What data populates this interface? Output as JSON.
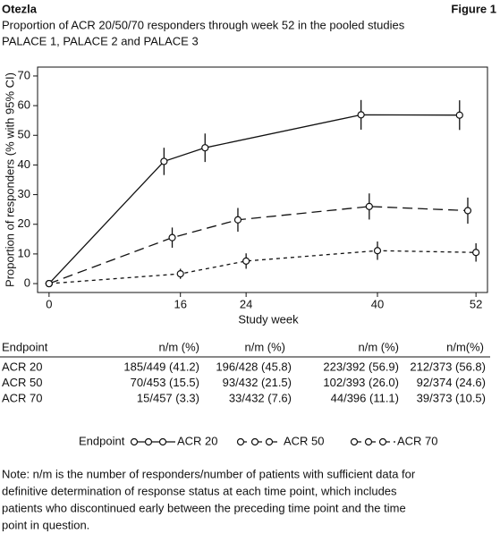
{
  "header": {
    "left": "Otezla",
    "right": "Figure 1"
  },
  "chart_data": {
    "type": "line",
    "title": [
      "Proportion of ACR 20/50/70 responders through week 52 in the pooled studies",
      "PALACE 1, PALACE 2 and PALACE 3"
    ],
    "x_label": "Study week",
    "y_label": "Proportion of responders (% with 95% CI)",
    "xlim": [
      -1.4,
      53.4
    ],
    "xticks": [
      0,
      16,
      24,
      40,
      52
    ],
    "ylim": [
      -3,
      73
    ],
    "yticks": [
      0,
      10,
      20,
      30,
      40,
      50,
      60,
      70
    ],
    "legend_title": "Endpoint",
    "series": [
      {
        "name": "ACR 20",
        "color": "#111111",
        "dash": "none",
        "x": [
          0,
          14,
          19,
          38,
          50
        ],
        "values": [
          0,
          41.2,
          45.8,
          56.9,
          56.8
        ],
        "errors": [
          null,
          4.6,
          4.8,
          5,
          5
        ]
      },
      {
        "name": "ACR 50",
        "color": "#111111",
        "dash": "11 6",
        "x": [
          0,
          15,
          23,
          39,
          51
        ],
        "values": [
          0,
          15.5,
          21.5,
          26.0,
          24.6
        ],
        "errors": [
          null,
          3.4,
          4,
          4.4,
          4.4
        ]
      },
      {
        "name": "ACR 70",
        "color": "#111111",
        "dash": "4 4",
        "x": [
          0,
          16,
          24,
          40,
          52
        ],
        "values": [
          0,
          3.3,
          7.6,
          11.1,
          10.5
        ],
        "errors": [
          null,
          1.7,
          2.6,
          3.1,
          3.1
        ]
      }
    ]
  },
  "table": {
    "columns": [
      "Endpoint",
      "n/m (%)",
      "n/m (%)",
      "n/m (%)",
      "n/m(%)"
    ],
    "rows": [
      [
        "ACR 20",
        "185/449 (41.2)",
        "196/428 (45.8)",
        "223/392 (56.9)",
        "212/373 (56.8)"
      ],
      [
        "ACR 50",
        "70/453 (15.5)",
        "93/432 (21.5)",
        "102/393 (26.0)",
        "92/374 (24.6)"
      ],
      [
        "ACR 70",
        "15/457 (3.3)",
        "33/432 (7.6)",
        "44/396 (11.1)",
        "39/373 (10.5)"
      ]
    ]
  },
  "note": [
    "Note: n/m is the number of responders/number of patients with sufficient data for",
    "definitive determination of response status at each time point, which includes",
    "patients who discontinued early between the preceding time point and the time",
    "point in question."
  ]
}
